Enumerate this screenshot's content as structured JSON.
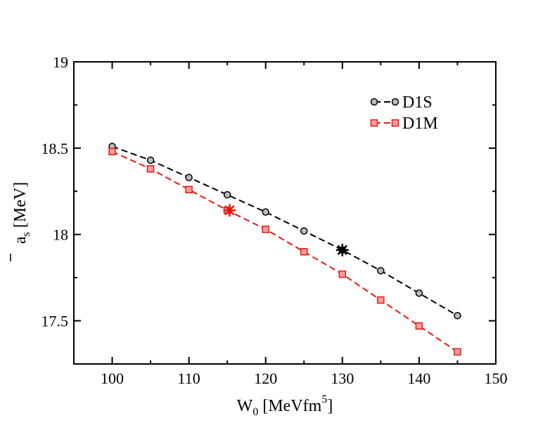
{
  "chart_data": {
    "type": "line",
    "xlabel": {
      "main": "W",
      "sub": "0",
      "unit_pre": " [MeVfm",
      "sup": "5",
      "unit_post": "]"
    },
    "ylabel": {
      "main": "a",
      "sub": "s",
      "unit": " [MeV]"
    },
    "xlim": [
      95,
      150
    ],
    "ylim": [
      17.25,
      19
    ],
    "xticks": [
      100,
      110,
      120,
      130,
      140,
      150
    ],
    "xtick_labels": [
      "100",
      "110",
      "120",
      "130",
      "140",
      "150"
    ],
    "yticks": [
      17.5,
      18,
      18.5,
      19
    ],
    "ytick_labels": [
      "17.5",
      "18",
      "18.5",
      "19"
    ],
    "series": [
      {
        "name": "D1S",
        "color": "#000000",
        "marker": "circle",
        "x": [
          100,
          105,
          110,
          115,
          120,
          125,
          130,
          135,
          140,
          145
        ],
        "y": [
          18.51,
          18.43,
          18.33,
          18.23,
          18.13,
          18.02,
          17.91,
          17.79,
          17.66,
          17.53
        ],
        "highlight": {
          "x": 130,
          "y": 17.91
        }
      },
      {
        "name": "D1M",
        "color": "#e8190f",
        "marker": "square",
        "x": [
          100,
          105,
          110,
          115,
          120,
          125,
          130,
          135,
          140,
          145
        ],
        "y": [
          18.48,
          18.38,
          18.26,
          18.14,
          18.03,
          17.9,
          17.77,
          17.62,
          17.47,
          17.32
        ],
        "highlight": {
          "x": 115.3,
          "y": 18.14
        }
      }
    ]
  }
}
